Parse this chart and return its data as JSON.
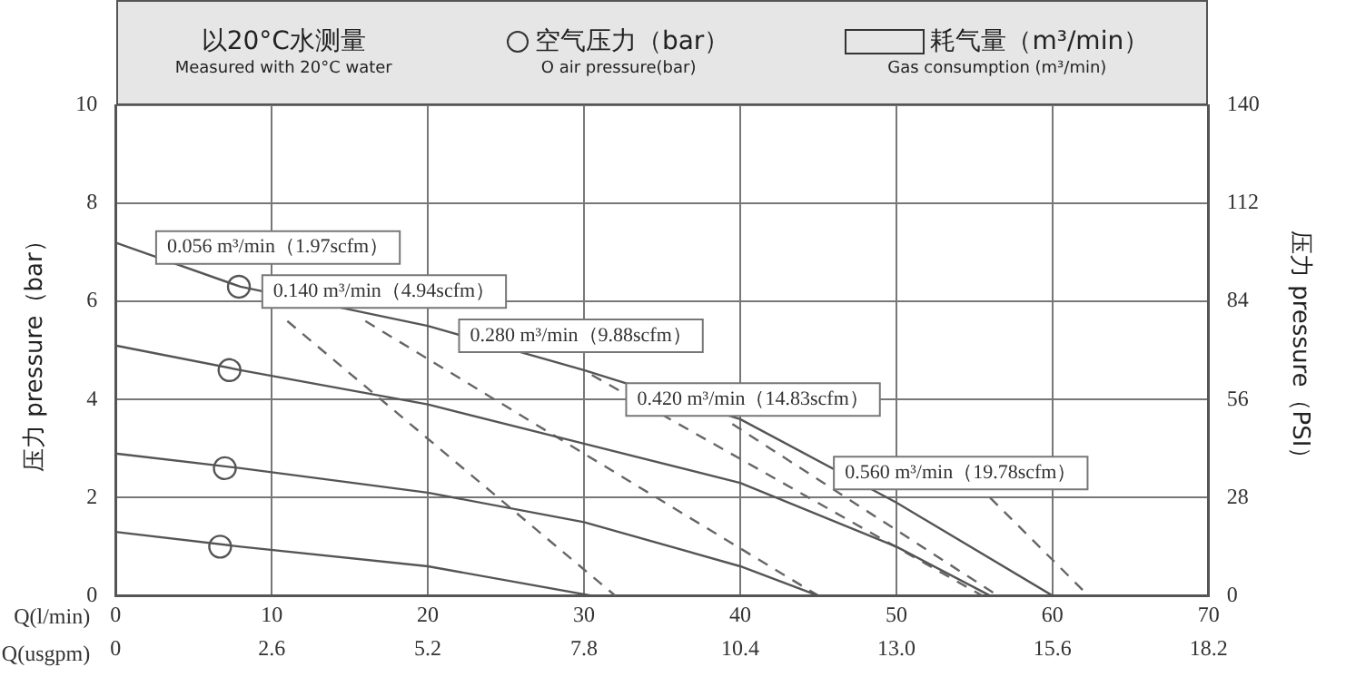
{
  "chart_data": {
    "type": "line",
    "title": "以20°C水测量",
    "subtitle": "Measured with 20°C water",
    "xlabel": "Q(l/min)",
    "x2label": "Q(usgpm)",
    "ylabel": "压力 pressure（bar）",
    "y2label": "压力 pressure（PSI）",
    "xlim": [
      0,
      70
    ],
    "xticks": [
      0,
      10,
      20,
      30,
      40,
      50,
      60,
      70
    ],
    "x2lim": [
      0,
      18.2
    ],
    "x2ticks": [
      {
        "value": 0,
        "label": "0"
      },
      {
        "value": 2.6,
        "label": "2.6"
      },
      {
        "value": 5.2,
        "label": "5.2"
      },
      {
        "value": 7.8,
        "label": "7.8"
      },
      {
        "value": 10.4,
        "label": "10.4"
      },
      {
        "value": 13,
        "label": "13.0"
      },
      {
        "value": 15.6,
        "label": "15.6"
      },
      {
        "value": 18.2,
        "label": "18.2"
      }
    ],
    "ylim": [
      0,
      10
    ],
    "yticks": [
      0,
      2,
      4,
      6,
      8,
      10
    ],
    "y2lim": [
      0,
      140
    ],
    "y2ticks": [
      0,
      28,
      56,
      84,
      112,
      140
    ],
    "grid": true,
    "legend": false,
    "series": [
      {
        "type": "line",
        "color": "#555555",
        "line_style": "solid",
        "x": [
          0,
          8,
          20,
          30,
          40,
          50,
          60
        ],
        "values": [
          7.2,
          6.3,
          5.5,
          4.6,
          3.6,
          1.9,
          0
        ]
      },
      {
        "type": "line",
        "color": "#555555",
        "line_style": "solid",
        "x": [
          0,
          8,
          20,
          30,
          40,
          50,
          56
        ],
        "values": [
          5.1,
          4.6,
          3.9,
          3.1,
          2.3,
          1.0,
          0
        ]
      },
      {
        "type": "line",
        "color": "#555555",
        "line_style": "solid",
        "x": [
          0,
          8,
          20,
          30,
          40,
          45
        ],
        "values": [
          2.9,
          2.6,
          2.1,
          1.5,
          0.6,
          0
        ]
      },
      {
        "type": "line",
        "color": "#555555",
        "line_style": "solid",
        "x": [
          0,
          8,
          20,
          30.5
        ],
        "values": [
          1.3,
          1.0,
          0.6,
          0
        ]
      },
      {
        "type": "line",
        "color": "#666666",
        "line_style": "dashed",
        "x": [
          11,
          32
        ],
        "values": [
          5.6,
          0
        ]
      },
      {
        "type": "line",
        "color": "#666666",
        "line_style": "dashed",
        "x": [
          16,
          45
        ],
        "values": [
          5.6,
          0
        ]
      },
      {
        "type": "line",
        "color": "#666666",
        "line_style": "dashed",
        "x": [
          30.5,
          55.5
        ],
        "values": [
          4.5,
          0
        ]
      },
      {
        "type": "line",
        "color": "#666666",
        "line_style": "dashed",
        "x": [
          39.5,
          56.5
        ],
        "values": [
          3.5,
          0
        ]
      },
      {
        "type": "line",
        "color": "#666666",
        "line_style": "dashed",
        "x": [
          56,
          62.3
        ],
        "values": [
          2.0,
          0
        ]
      },
      {
        "type": "scatter",
        "marker": "circle",
        "color": "#555555",
        "x": [
          7.9,
          7.3,
          7,
          6.7
        ],
        "values": [
          6.3,
          4.6,
          2.6,
          1.0
        ]
      }
    ],
    "annotations": [
      "空气压力（bar）",
      "O air pressure(bar)",
      "耗气量（m³/min）",
      "Gas consumption (m³/min)",
      {
        "text": "0.056 m³/min（1.97scfm）",
        "x": 2.6,
        "y": 7.1
      },
      {
        "text": "0.140 m³/min（4.94scfm）",
        "x": 9.4,
        "y": 6.2
      },
      {
        "text": "0.280 m³/min（9.88scfm）",
        "x": 22,
        "y": 5.3
      },
      {
        "text": "0.420 m³/min（14.83scfm）",
        "x": 32.7,
        "y": 4.0
      },
      {
        "text": "0.560 m³/min（19.78scfm）",
        "x": 46,
        "y": 2.5
      }
    ]
  }
}
